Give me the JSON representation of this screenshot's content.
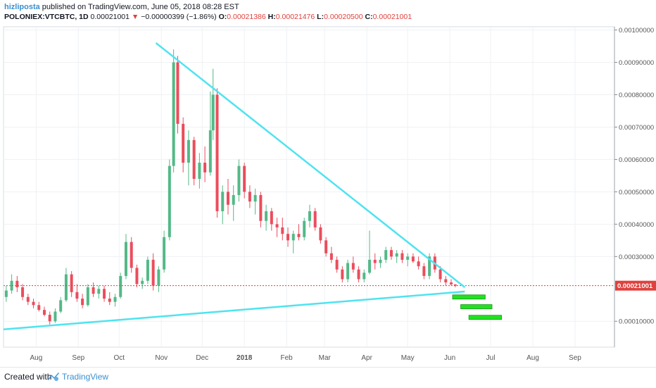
{
  "header": {
    "author": "hizliposta",
    "published_text": "published on TradingView.com, June 05, 2018 08:28 EST",
    "symbol": "POLONIEX:VTCBTC, 1D",
    "last_price": "0.00021001",
    "change_arrow": "▼",
    "change": "−0.00000399 (−1.86%)",
    "o_label": "O:",
    "o_value": "0.00021386",
    "h_label": "H:",
    "h_value": "0.00021476",
    "l_label": "L:",
    "l_value": "0.00020500",
    "c_label": "C:",
    "c_value": "0.00021001"
  },
  "footer": {
    "created_with": "Created with",
    "brand": "TradingView",
    "logo_icon": "tradingview-logo-icon"
  },
  "colors": {
    "up": "#53b987",
    "down": "#eb4d5c",
    "trendline": "#4fe3f0",
    "target_box": "#22e022",
    "price_line": "#e0413d",
    "grid": "#eef1f4",
    "axis_text": "#555555"
  },
  "chart_data": {
    "type": "candlestick",
    "title": "",
    "xlabel": "",
    "ylabel": "",
    "x_tick_labels": [
      "Aug",
      "Sep",
      "Oct",
      "Nov",
      "Dec",
      "2018",
      "Feb",
      "Mar",
      "Apr",
      "May",
      "Jun",
      "Jul",
      "Aug",
      "Sep"
    ],
    "x_tick_dates": [
      "2017-08-01",
      "2017-09-01",
      "2017-10-01",
      "2017-11-01",
      "2017-12-01",
      "2018-01-01",
      "2018-02-01",
      "2018-03-01",
      "2018-04-01",
      "2018-05-01",
      "2018-06-01",
      "2018-07-01",
      "2018-08-01",
      "2018-09-01"
    ],
    "y_tick_labels": [
      "0.00100000",
      "0.00090000",
      "0.00080000",
      "0.00070000",
      "0.00060000",
      "0.00050000",
      "0.00040000",
      "0.00030000",
      "0.00010000"
    ],
    "y_tick_values": [
      0.001,
      0.0009,
      0.0008,
      0.0007,
      0.0006,
      0.0005,
      0.0004,
      0.0003,
      0.0001
    ],
    "ylim": [
      2e-05,
      0.00101
    ],
    "xlim": [
      "2017-07-08",
      "2018-09-30"
    ],
    "grid": true,
    "current_price": 0.00021001,
    "current_price_label": "0.00021001",
    "ohlc": [
      [
        "2017-07-10",
        0.000175,
        0.00021,
        0.00016,
        0.000195
      ],
      [
        "2017-07-14",
        0.000195,
        0.000245,
        0.000185,
        0.000225
      ],
      [
        "2017-07-18",
        0.000225,
        0.00024,
        0.00019,
        0.000205
      ],
      [
        "2017-07-22",
        0.000205,
        0.000215,
        0.000165,
        0.000175
      ],
      [
        "2017-07-26",
        0.000175,
        0.000185,
        0.00015,
        0.00016
      ],
      [
        "2017-07-30",
        0.00016,
        0.00017,
        0.00014,
        0.00015
      ],
      [
        "2017-08-03",
        0.00015,
        0.00016,
        0.00013,
        0.000135
      ],
      [
        "2017-08-07",
        0.000135,
        0.000145,
        0.000115,
        0.00012
      ],
      [
        "2017-08-11",
        0.00012,
        0.00013,
        9e-05,
        0.0001
      ],
      [
        "2017-08-15",
        0.0001,
        0.00014,
        9.5e-05,
        0.00013
      ],
      [
        "2017-08-19",
        0.00013,
        0.000175,
        0.000125,
        0.000165
      ],
      [
        "2017-08-23",
        0.000165,
        0.000265,
        0.00016,
        0.000245
      ],
      [
        "2017-08-27",
        0.000245,
        0.000255,
        0.000175,
        0.00019
      ],
      [
        "2017-08-31",
        0.00019,
        0.000215,
        0.00016,
        0.00017
      ],
      [
        "2017-09-04",
        0.00017,
        0.000185,
        0.00014,
        0.00015
      ],
      [
        "2017-09-08",
        0.00015,
        0.000215,
        0.000145,
        0.000205
      ],
      [
        "2017-09-12",
        0.000205,
        0.00022,
        0.000175,
        0.000185
      ],
      [
        "2017-09-16",
        0.000185,
        0.00021,
        0.00017,
        0.0002
      ],
      [
        "2017-09-20",
        0.0002,
        0.00021,
        0.00016,
        0.00017
      ],
      [
        "2017-09-24",
        0.00017,
        0.00019,
        0.00015,
        0.00016
      ],
      [
        "2017-09-28",
        0.00016,
        0.000185,
        0.000145,
        0.000175
      ],
      [
        "2017-10-02",
        0.000175,
        0.00025,
        0.00017,
        0.00024
      ],
      [
        "2017-10-06",
        0.00024,
        0.00037,
        0.00023,
        0.000345
      ],
      [
        "2017-10-10",
        0.000345,
        0.00036,
        0.00025,
        0.000265
      ],
      [
        "2017-10-14",
        0.000265,
        0.000275,
        0.000205,
        0.000215
      ],
      [
        "2017-10-18",
        0.000215,
        0.000235,
        0.0002,
        0.000225
      ],
      [
        "2017-10-22",
        0.000225,
        0.0003,
        0.000215,
        0.00029
      ],
      [
        "2017-10-26",
        0.00029,
        0.00031,
        0.000195,
        0.00021
      ],
      [
        "2017-10-30",
        0.00021,
        0.00027,
        0.00019,
        0.00026
      ],
      [
        "2017-11-03",
        0.00026,
        0.00038,
        0.00025,
        0.00036
      ],
      [
        "2017-11-07",
        0.00036,
        0.0006,
        0.00035,
        0.00058
      ],
      [
        "2017-11-10",
        0.00058,
        0.00094,
        0.00056,
        0.0009
      ],
      [
        "2017-11-13",
        0.0009,
        0.00092,
        0.00068,
        0.00071
      ],
      [
        "2017-11-17",
        0.00071,
        0.00073,
        0.00056,
        0.00059
      ],
      [
        "2017-11-21",
        0.00059,
        0.00069,
        0.00052,
        0.00066
      ],
      [
        "2017-11-25",
        0.00066,
        0.00067,
        0.00052,
        0.00054
      ],
      [
        "2017-11-29",
        0.00054,
        0.00062,
        0.00051,
        0.00059
      ],
      [
        "2017-12-03",
        0.00059,
        0.00064,
        0.00053,
        0.00056
      ],
      [
        "2017-12-07",
        0.00056,
        0.00081,
        0.00055,
        0.00069
      ],
      [
        "2017-12-09",
        0.00069,
        0.00088,
        0.00066,
        0.0008
      ],
      [
        "2017-12-12",
        0.0008,
        0.00082,
        0.00042,
        0.00044
      ],
      [
        "2017-12-16",
        0.00044,
        0.00052,
        0.0004,
        0.0005
      ],
      [
        "2017-12-20",
        0.0005,
        0.00054,
        0.00043,
        0.00046
      ],
      [
        "2017-12-24",
        0.00046,
        0.00052,
        0.00041,
        0.00049
      ],
      [
        "2017-12-28",
        0.00049,
        0.0006,
        0.00047,
        0.00058
      ],
      [
        "2018-01-01",
        0.00058,
        0.00059,
        0.00048,
        0.0005
      ],
      [
        "2018-01-05",
        0.0005,
        0.00052,
        0.00045,
        0.00047
      ],
      [
        "2018-01-09",
        0.00047,
        0.00051,
        0.00043,
        0.00049
      ],
      [
        "2018-01-13",
        0.00049,
        0.0005,
        0.00039,
        0.00041
      ],
      [
        "2018-01-17",
        0.00041,
        0.00046,
        0.00038,
        0.00044
      ],
      [
        "2018-01-21",
        0.00044,
        0.00045,
        0.00038,
        0.0004
      ],
      [
        "2018-01-25",
        0.0004,
        0.00042,
        0.00036,
        0.00039
      ],
      [
        "2018-01-29",
        0.00039,
        0.00042,
        0.00035,
        0.00037
      ],
      [
        "2018-02-02",
        0.00037,
        0.00039,
        0.00033,
        0.00035
      ],
      [
        "2018-02-06",
        0.00035,
        0.00038,
        0.00031,
        0.00037
      ],
      [
        "2018-02-10",
        0.00037,
        0.0004,
        0.00035,
        0.00036
      ],
      [
        "2018-02-14",
        0.00036,
        0.00042,
        0.00035,
        0.00041
      ],
      [
        "2018-02-18",
        0.00041,
        0.00046,
        0.00039,
        0.00044
      ],
      [
        "2018-02-22",
        0.00044,
        0.00045,
        0.00038,
        0.00039
      ],
      [
        "2018-02-26",
        0.00039,
        0.0004,
        0.00034,
        0.00035
      ],
      [
        "2018-03-02",
        0.00035,
        0.00036,
        0.0003,
        0.00031
      ],
      [
        "2018-03-06",
        0.00031,
        0.00033,
        0.00028,
        0.00029
      ],
      [
        "2018-03-10",
        0.00029,
        0.0003,
        0.00025,
        0.00026
      ],
      [
        "2018-03-14",
        0.00026,
        0.00027,
        0.00022,
        0.00023
      ],
      [
        "2018-03-18",
        0.00023,
        0.00029,
        0.00022,
        0.00028
      ],
      [
        "2018-03-22",
        0.00028,
        0.0003,
        0.00025,
        0.00026
      ],
      [
        "2018-03-26",
        0.00026,
        0.00027,
        0.00022,
        0.00023
      ],
      [
        "2018-03-30",
        0.00023,
        0.00026,
        0.00022,
        0.00025
      ],
      [
        "2018-04-03",
        0.00025,
        0.00038,
        0.000245,
        0.00029
      ],
      [
        "2018-04-07",
        0.00029,
        0.00031,
        0.00026,
        0.00028
      ],
      [
        "2018-04-11",
        0.00028,
        0.0003,
        0.000265,
        0.00029
      ],
      [
        "2018-04-15",
        0.00029,
        0.00033,
        0.00028,
        0.00032
      ],
      [
        "2018-04-19",
        0.00032,
        0.00033,
        0.00029,
        0.0003
      ],
      [
        "2018-04-23",
        0.0003,
        0.00032,
        0.00028,
        0.00031
      ],
      [
        "2018-04-27",
        0.00031,
        0.00032,
        0.00028,
        0.00029
      ],
      [
        "2018-05-01",
        0.00029,
        0.00031,
        0.00027,
        0.0003
      ],
      [
        "2018-05-05",
        0.0003,
        0.00031,
        0.00028,
        0.000285
      ],
      [
        "2018-05-09",
        0.000285,
        0.0003,
        0.00026,
        0.00027
      ],
      [
        "2018-05-13",
        0.00027,
        0.00028,
        0.00023,
        0.00024
      ],
      [
        "2018-05-17",
        0.00024,
        0.00031,
        0.00023,
        0.0003
      ],
      [
        "2018-05-21",
        0.0003,
        0.00031,
        0.00025,
        0.00026
      ],
      [
        "2018-05-25",
        0.00026,
        0.00027,
        0.00022,
        0.00023
      ],
      [
        "2018-05-29",
        0.00023,
        0.00024,
        0.00021,
        0.00022
      ],
      [
        "2018-06-02",
        0.00022,
        0.00023,
        0.00021,
        0.000214
      ],
      [
        "2018-06-05",
        0.00021386,
        0.00021476,
        0.000205,
        0.00021001
      ]
    ],
    "trendlines": [
      {
        "name": "",
        "points": [
          [
            "2017-10-28",
            0.00096
          ],
          [
            "2018-06-12",
            0.000205
          ]
        ]
      },
      {
        "name": "",
        "points": [
          [
            "2017-07-08",
            7.5e-05
          ],
          [
            "2018-06-12",
            0.000192
          ]
        ]
      }
    ],
    "target_zones": [
      {
        "x": [
          "2018-06-03",
          "2018-06-27"
        ],
        "y": 0.000175
      },
      {
        "x": [
          "2018-06-09",
          "2018-07-02"
        ],
        "y": 0.000145
      },
      {
        "x": [
          "2018-06-15",
          "2018-07-09"
        ],
        "y": 0.000112
      }
    ]
  }
}
